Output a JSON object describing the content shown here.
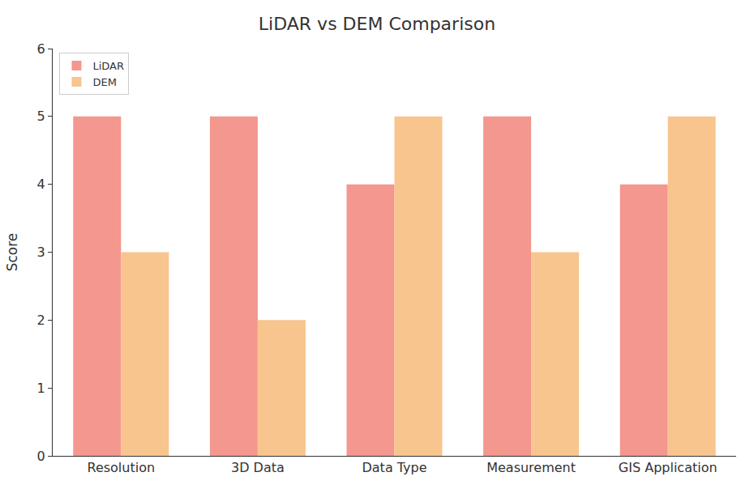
{
  "chart_data": {
    "type": "bar",
    "title": "LiDAR vs DEM Comparison",
    "y_label": "Score",
    "categories": [
      "Resolution",
      "3D Data",
      "Data Type",
      "Measurement",
      "GIS Application"
    ],
    "series": [
      {
        "name": "LiDAR",
        "color": "#f4978e",
        "values": [
          5,
          5,
          4,
          5,
          4
        ]
      },
      {
        "name": "DEM",
        "color": "#f8c58e",
        "values": [
          3,
          2,
          5,
          3,
          5
        ]
      }
    ],
    "ylim": [
      0,
      6
    ],
    "yticks": [
      0,
      1,
      2,
      3,
      4,
      5,
      6
    ],
    "grid": false,
    "legend": "upper left"
  }
}
